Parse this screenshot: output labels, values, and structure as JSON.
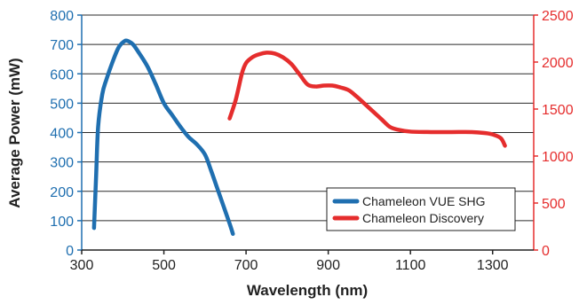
{
  "chart_data": {
    "type": "line",
    "xlabel": "Wavelength (nm)",
    "ylabel": "Average Power (mW)",
    "xlim": [
      300,
      1400
    ],
    "x_ticks": [
      300,
      500,
      700,
      900,
      1100,
      1300
    ],
    "ylim_left": [
      0,
      800
    ],
    "y_ticks_left": [
      0,
      100,
      200,
      300,
      400,
      500,
      600,
      700,
      800
    ],
    "ylim_right": [
      0,
      2500
    ],
    "y_ticks_right": [
      0,
      500,
      1000,
      1500,
      2000,
      2500
    ],
    "grid": "horizontal",
    "legend_position": "bottom-right",
    "colors": {
      "left_axis": "#1f6fb0",
      "right_axis": "#e52d2d"
    },
    "series": [
      {
        "name": "Chameleon VUE SHG",
        "axis": "left",
        "color": "#1f6fb0",
        "x": [
          330,
          335,
          340,
          350,
          360,
          375,
          390,
          405,
          415,
          425,
          440,
          460,
          480,
          500,
          520,
          540,
          560,
          580,
          600,
          615,
          630,
          645,
          660,
          668
        ],
        "y": [
          75,
          250,
          420,
          530,
          580,
          640,
          690,
          712,
          710,
          700,
          670,
          625,
          565,
          500,
          460,
          420,
          385,
          360,
          325,
          270,
          210,
          150,
          90,
          55
        ]
      },
      {
        "name": "Chameleon Discovery",
        "axis": "right",
        "color": "#e52d2d",
        "x": [
          660,
          675,
          690,
          700,
          715,
          730,
          750,
          770,
          790,
          810,
          830,
          850,
          870,
          890,
          910,
          930,
          950,
          970,
          990,
          1010,
          1030,
          1050,
          1070,
          1100,
          1150,
          1200,
          1250,
          1280,
          1300,
          1320,
          1330
        ],
        "y": [
          1400,
          1600,
          1880,
          1990,
          2050,
          2080,
          2100,
          2090,
          2050,
          1980,
          1870,
          1760,
          1740,
          1750,
          1750,
          1730,
          1700,
          1630,
          1550,
          1470,
          1390,
          1310,
          1280,
          1260,
          1255,
          1255,
          1255,
          1245,
          1230,
          1190,
          1110
        ]
      }
    ]
  }
}
